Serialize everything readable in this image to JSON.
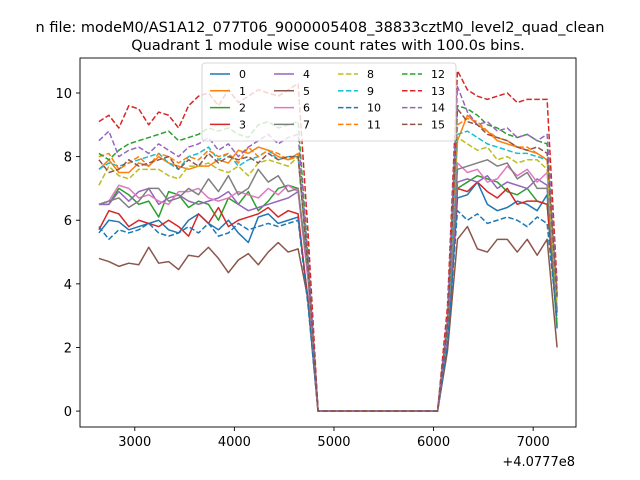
{
  "chart_data": {
    "type": "line",
    "suptitle": "n file: modeM0/AS1A12_077T06_9000005408_38833cztM0_level2_quad_clean",
    "title": "Quadrant 1 module wise count rates with 100.0s bins.",
    "xlabel": "",
    "ylabel": "",
    "x_offset_label": "+4.0777e8",
    "xlim": [
      2450,
      7430
    ],
    "ylim": [
      -0.5,
      11.1
    ],
    "xticks": [
      3000,
      4000,
      5000,
      6000,
      7000
    ],
    "yticks": [
      0,
      2,
      4,
      6,
      8,
      10
    ],
    "grid": false,
    "legend_position": "upper-center",
    "legend_columns": 4,
    "x": [
      2640,
      2740,
      2840,
      2940,
      3040,
      3140,
      3240,
      3340,
      3440,
      3540,
      3640,
      3740,
      3840,
      3940,
      4040,
      4140,
      4240,
      4340,
      4440,
      4540,
      4640,
      4740,
      4840,
      4940,
      5040,
      5140,
      5240,
      5340,
      5440,
      5540,
      5640,
      5740,
      5840,
      5940,
      6040,
      6140,
      6240,
      6340,
      6440,
      6540,
      6640,
      6740,
      6840,
      6940,
      7040,
      7140,
      7240
    ],
    "series": [
      {
        "name": "0",
        "color": "#1f77b4",
        "dash": "solid",
        "values": [
          5.6,
          6.0,
          5.95,
          5.7,
          5.8,
          5.9,
          6.0,
          5.7,
          5.6,
          6.0,
          6.2,
          5.9,
          5.7,
          6.0,
          5.6,
          5.3,
          6.1,
          6.2,
          5.9,
          6.0,
          6.1,
          3.5,
          0,
          0,
          0,
          0,
          0,
          0,
          0,
          0,
          0,
          0,
          0,
          0,
          0,
          2.0,
          6.7,
          6.8,
          7.2,
          6.5,
          6.3,
          6.4,
          6.6,
          6.5,
          6.3,
          6.8,
          2.6
        ]
      },
      {
        "name": "1",
        "color": "#ff7f0e",
        "dash": "solid",
        "values": [
          7.6,
          7.9,
          7.5,
          7.5,
          7.8,
          7.7,
          8.0,
          7.8,
          7.7,
          7.6,
          7.7,
          7.7,
          7.9,
          7.8,
          8.2,
          8.1,
          8.3,
          8.2,
          8.0,
          7.9,
          8.1,
          4.5,
          0,
          0,
          0,
          0,
          0,
          0,
          0,
          0,
          0,
          0,
          0,
          0,
          0,
          2.6,
          8.5,
          9.3,
          9.0,
          8.8,
          8.5,
          8.4,
          8.3,
          8.2,
          8.1,
          7.9,
          3.7
        ]
      },
      {
        "name": "2",
        "color": "#2ca02c",
        "dash": "solid",
        "values": [
          6.5,
          6.5,
          7.0,
          6.8,
          6.5,
          6.6,
          6.1,
          6.9,
          6.8,
          6.4,
          6.6,
          6.5,
          6.0,
          6.7,
          6.5,
          6.9,
          6.3,
          6.6,
          7.0,
          7.1,
          7.0,
          4.3,
          0,
          0,
          0,
          0,
          0,
          0,
          0,
          0,
          0,
          0,
          0,
          0,
          0,
          2.2,
          7.0,
          7.2,
          7.4,
          7.3,
          7.2,
          6.9,
          6.8,
          7.0,
          6.6,
          6.5,
          2.7
        ]
      },
      {
        "name": "3",
        "color": "#d62728",
        "dash": "solid",
        "values": [
          5.7,
          6.3,
          6.2,
          5.8,
          6.0,
          5.9,
          5.8,
          6.0,
          5.8,
          5.5,
          6.2,
          5.9,
          6.4,
          5.8,
          6.0,
          6.1,
          6.2,
          6.4,
          6.1,
          6.3,
          6.2,
          3.4,
          0,
          0,
          0,
          0,
          0,
          0,
          0,
          0,
          0,
          0,
          0,
          0,
          0,
          2.1,
          7.0,
          6.9,
          7.2,
          6.9,
          6.7,
          7.0,
          6.5,
          6.6,
          6.6,
          6.5,
          3.2
        ]
      },
      {
        "name": "4",
        "color": "#9467bd",
        "dash": "solid",
        "values": [
          6.5,
          6.5,
          6.9,
          6.6,
          6.9,
          7.0,
          6.5,
          6.7,
          6.8,
          6.6,
          6.5,
          6.6,
          6.7,
          6.9,
          6.5,
          6.3,
          6.4,
          6.5,
          6.6,
          6.7,
          6.9,
          4.2,
          0,
          0,
          0,
          0,
          0,
          0,
          0,
          0,
          0,
          0,
          0,
          0,
          0,
          2.3,
          7.2,
          7.3,
          7.2,
          7.4,
          7.0,
          7.2,
          7.1,
          7.0,
          7.3,
          7.1,
          3.1
        ]
      },
      {
        "name": "5",
        "color": "#8c564b",
        "dash": "solid",
        "values": [
          4.8,
          4.7,
          4.55,
          4.65,
          4.6,
          5.15,
          4.65,
          4.7,
          4.45,
          4.9,
          4.85,
          5.15,
          4.8,
          4.35,
          4.75,
          4.95,
          4.6,
          5.0,
          5.3,
          5.0,
          5.1,
          3.5,
          0,
          0,
          0,
          0,
          0,
          0,
          0,
          0,
          0,
          0,
          0,
          0,
          0,
          1.9,
          5.4,
          5.8,
          5.1,
          5.0,
          5.4,
          5.4,
          5.0,
          5.4,
          4.9,
          5.4,
          2.0
        ]
      },
      {
        "name": "6",
        "color": "#e377c2",
        "dash": "solid",
        "values": [
          6.5,
          6.6,
          7.1,
          7.0,
          6.7,
          6.8,
          6.6,
          6.5,
          6.9,
          6.9,
          7.0,
          6.7,
          6.6,
          6.7,
          6.9,
          6.8,
          6.7,
          7.0,
          6.8,
          7.1,
          6.9,
          4.1,
          0,
          0,
          0,
          0,
          0,
          0,
          0,
          0,
          0,
          0,
          0,
          0,
          0,
          2.4,
          7.8,
          7.5,
          7.6,
          7.2,
          7.3,
          7.7,
          7.4,
          7.6,
          7.2,
          7.5,
          3.2
        ]
      },
      {
        "name": "7",
        "color": "#7f7f7f",
        "dash": "solid",
        "values": [
          6.5,
          6.6,
          6.7,
          6.4,
          6.6,
          7.0,
          7.0,
          6.6,
          6.7,
          7.0,
          6.8,
          7.3,
          6.9,
          7.4,
          6.8,
          7.0,
          7.6,
          7.2,
          7.4,
          6.9,
          7.0,
          4.3,
          0,
          0,
          0,
          0,
          0,
          0,
          0,
          0,
          0,
          0,
          0,
          0,
          0,
          2.5,
          7.6,
          7.7,
          7.8,
          7.9,
          7.7,
          7.8,
          7.3,
          7.5,
          7.0,
          7.0,
          3.1
        ]
      },
      {
        "name": "8",
        "color": "#bcbd22",
        "dash": "dashed",
        "values": [
          7.1,
          7.7,
          7.4,
          7.3,
          7.6,
          7.6,
          7.6,
          7.4,
          7.3,
          7.7,
          7.7,
          7.8,
          7.6,
          7.5,
          7.7,
          7.4,
          7.8,
          7.9,
          7.8,
          7.7,
          8.0,
          4.5,
          0,
          0,
          0,
          0,
          0,
          0,
          0,
          0,
          0,
          0,
          0,
          0,
          0,
          2.7,
          8.6,
          8.4,
          8.2,
          8.3,
          7.9,
          8.0,
          7.8,
          7.9,
          7.9,
          7.6,
          3.4
        ]
      },
      {
        "name": "9",
        "color": "#17becf",
        "dash": "dashed",
        "values": [
          7.6,
          7.8,
          7.7,
          7.8,
          7.9,
          8.0,
          8.1,
          7.8,
          7.6,
          8.0,
          8.1,
          8.3,
          7.9,
          8.1,
          7.7,
          7.9,
          8.0,
          8.2,
          7.9,
          8.0,
          8.0,
          4.6,
          0,
          0,
          0,
          0,
          0,
          0,
          0,
          0,
          0,
          0,
          0,
          0,
          0,
          2.7,
          8.7,
          8.8,
          8.6,
          8.4,
          8.3,
          8.2,
          8.1,
          8.1,
          8.0,
          7.9,
          3.5
        ]
      },
      {
        "name": "10",
        "color": "#1f77b4",
        "dash": "dashed",
        "values": [
          5.8,
          5.4,
          5.7,
          5.6,
          5.7,
          5.9,
          5.6,
          5.5,
          5.6,
          5.8,
          5.6,
          5.9,
          5.5,
          5.6,
          5.9,
          5.7,
          5.8,
          5.9,
          5.8,
          5.9,
          6.0,
          3.3,
          0,
          0,
          0,
          0,
          0,
          0,
          0,
          0,
          0,
          0,
          0,
          0,
          0,
          2.1,
          6.3,
          6.0,
          6.2,
          5.9,
          6.0,
          6.1,
          6.0,
          5.8,
          6.1,
          5.9,
          2.9
        ]
      },
      {
        "name": "11",
        "color": "#ff7f0e",
        "dash": "dashed",
        "values": [
          8.0,
          8.1,
          7.6,
          7.8,
          8.0,
          7.7,
          8.1,
          8.0,
          7.8,
          8.0,
          7.9,
          8.2,
          8.0,
          8.1,
          7.8,
          8.3,
          8.0,
          8.2,
          8.1,
          7.9,
          8.0,
          4.6,
          0,
          0,
          0,
          0,
          0,
          0,
          0,
          0,
          0,
          0,
          0,
          0,
          0,
          2.8,
          9.0,
          9.2,
          9.1,
          8.8,
          8.6,
          8.5,
          8.3,
          8.3,
          8.1,
          7.9,
          3.6
        ]
      },
      {
        "name": "12",
        "color": "#2ca02c",
        "dash": "dashed",
        "values": [
          8.1,
          7.9,
          8.2,
          8.4,
          8.5,
          8.6,
          8.7,
          8.8,
          8.5,
          8.6,
          8.7,
          8.9,
          8.8,
          8.9,
          8.7,
          8.6,
          9.0,
          9.1,
          8.9,
          9.0,
          9.1,
          4.9,
          0,
          0,
          0,
          0,
          0,
          0,
          0,
          0,
          0,
          0,
          0,
          0,
          0,
          2.9,
          9.6,
          9.5,
          9.3,
          9.0,
          8.9,
          8.7,
          8.6,
          8.7,
          8.5,
          8.4,
          3.8
        ]
      },
      {
        "name": "13",
        "color": "#d62728",
        "dash": "dashed",
        "values": [
          9.1,
          9.3,
          8.9,
          9.6,
          9.5,
          9.0,
          9.4,
          9.3,
          8.9,
          9.6,
          9.9,
          10.0,
          9.6,
          10.1,
          9.7,
          9.9,
          10.1,
          10.0,
          9.9,
          10.1,
          10.3,
          5.6,
          0,
          0,
          0,
          0,
          0,
          0,
          0,
          0,
          0,
          0,
          0,
          0,
          0,
          3.3,
          10.7,
          10.1,
          9.9,
          9.8,
          9.9,
          10.0,
          9.7,
          9.8,
          9.8,
          9.8,
          4.0
        ]
      },
      {
        "name": "14",
        "color": "#9467bd",
        "dash": "dashed",
        "values": [
          8.5,
          8.8,
          8.0,
          8.2,
          8.3,
          8.1,
          8.4,
          8.2,
          8.0,
          8.3,
          8.4,
          8.6,
          8.2,
          8.4,
          8.0,
          8.3,
          8.5,
          8.7,
          8.4,
          8.6,
          8.7,
          4.8,
          0,
          0,
          0,
          0,
          0,
          0,
          0,
          0,
          0,
          0,
          0,
          0,
          0,
          2.9,
          10.2,
          9.4,
          9.0,
          9.1,
          8.8,
          8.9,
          8.6,
          8.7,
          8.5,
          8.7,
          3.7
        ]
      },
      {
        "name": "15",
        "color": "#8c564b",
        "dash": "dashed",
        "values": [
          7.9,
          7.5,
          7.6,
          7.9,
          7.7,
          7.8,
          7.9,
          8.0,
          7.6,
          7.9,
          7.7,
          8.1,
          7.8,
          8.0,
          7.9,
          8.0,
          7.8,
          8.1,
          7.9,
          8.0,
          8.0,
          4.5,
          0,
          0,
          0,
          0,
          0,
          0,
          0,
          0,
          0,
          0,
          0,
          0,
          0,
          2.7,
          9.5,
          9.1,
          9.0,
          8.7,
          8.6,
          8.5,
          8.3,
          8.2,
          8.3,
          8.1,
          3.6
        ]
      }
    ]
  }
}
